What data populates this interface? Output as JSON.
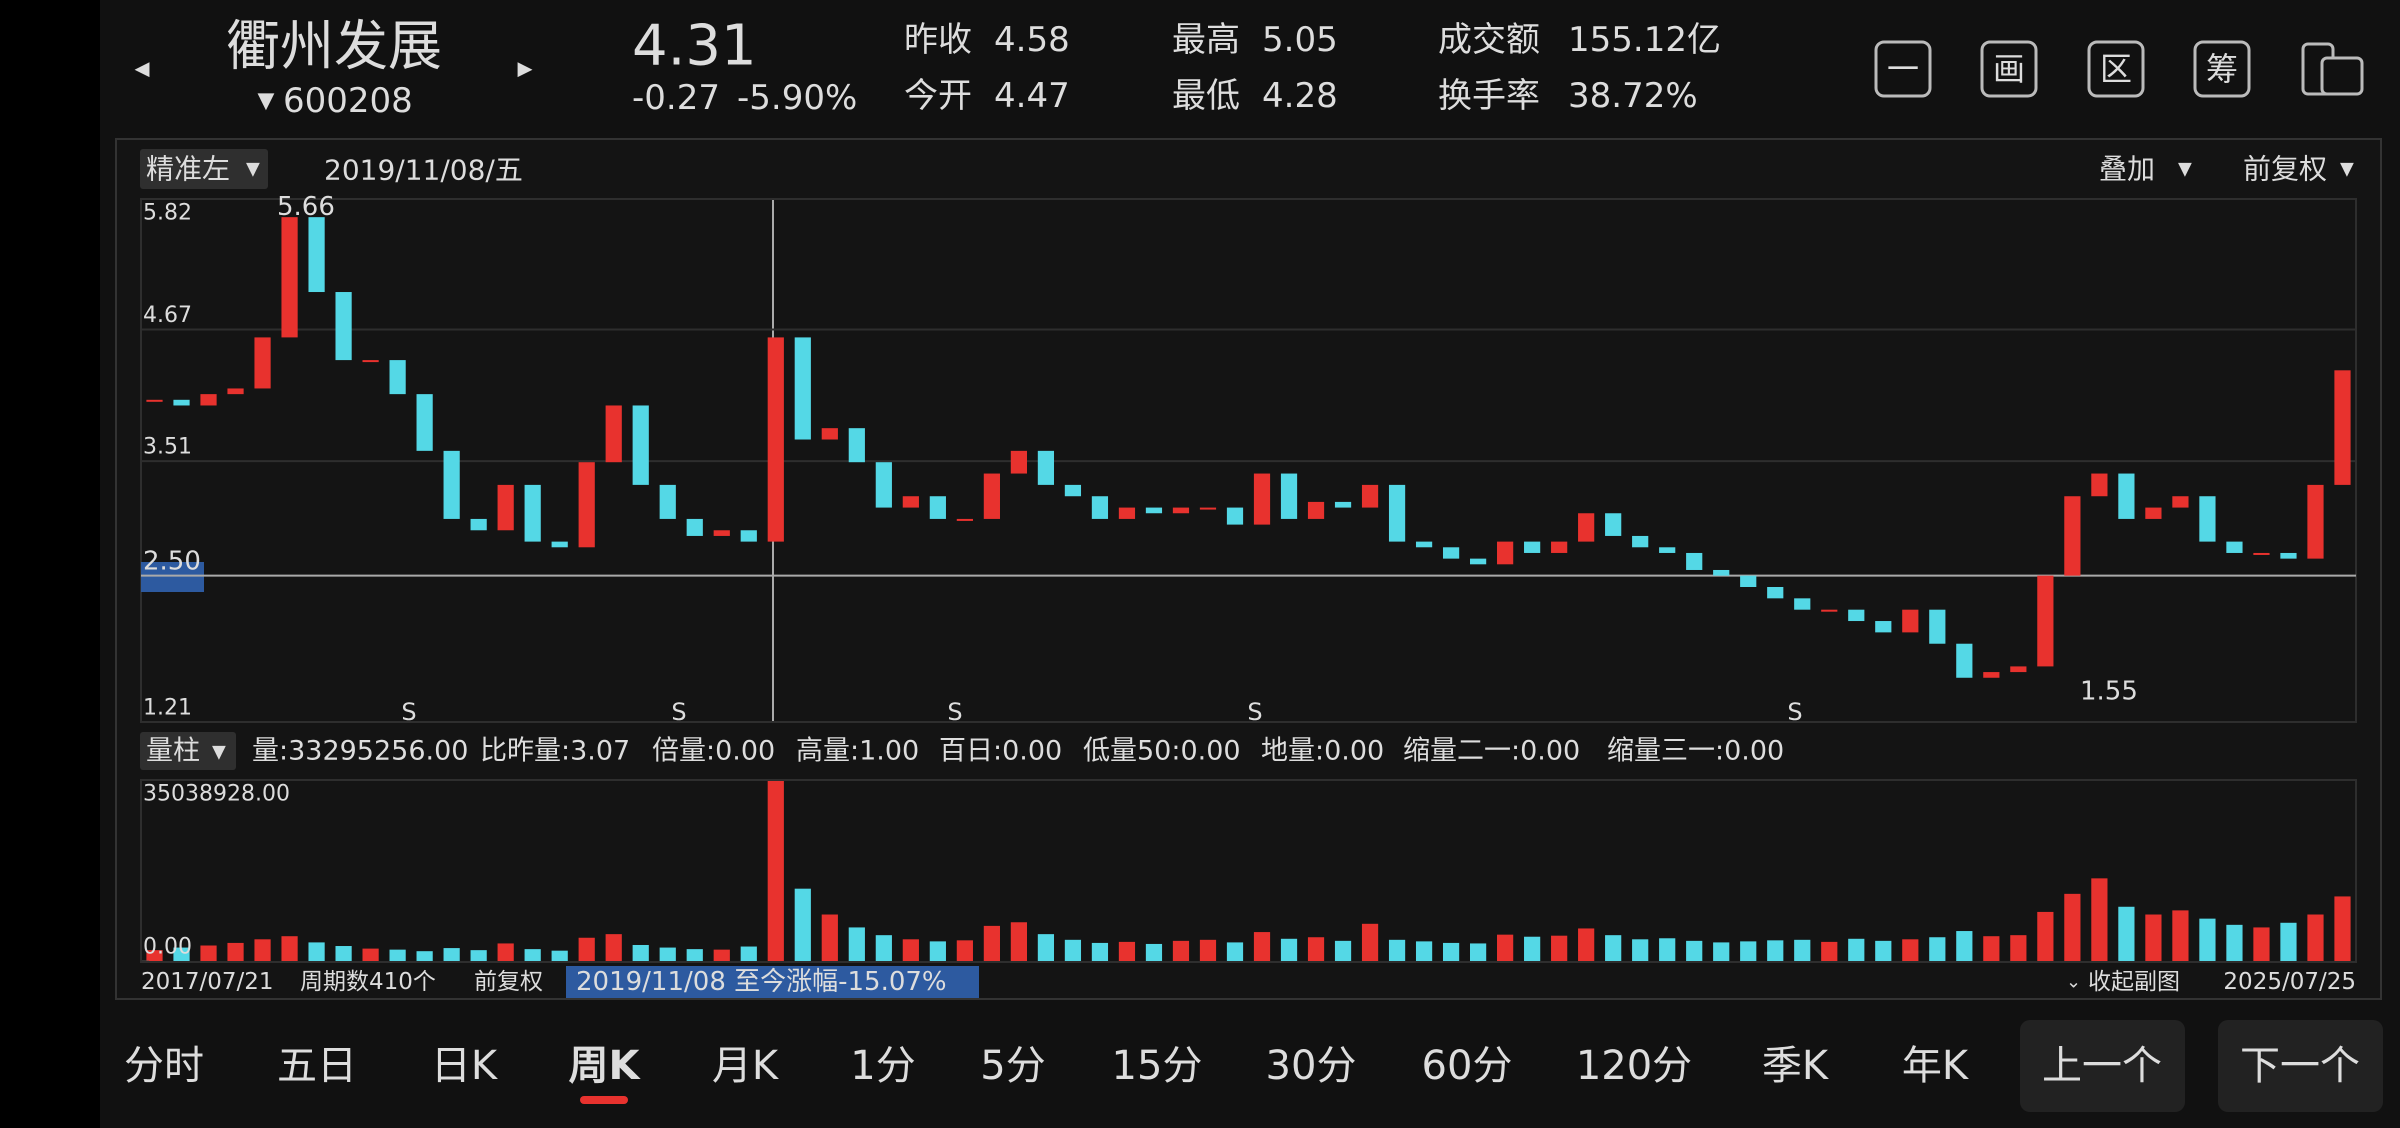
{
  "header": {
    "name": "衢州发展",
    "code": "600208",
    "price": "4.31",
    "change": "-0.27",
    "change_pct": "-5.90%",
    "price_color": "#2fb34a",
    "stats": [
      {
        "label": "昨收",
        "value": "4.58",
        "color": "#eeeeee"
      },
      {
        "label": "今开",
        "value": "4.47",
        "color": "#2fb34a"
      },
      {
        "label": "最高",
        "value": "5.05",
        "color": "#e8322e"
      },
      {
        "label": "最低",
        "value": "4.28",
        "color": "#2fb34a"
      },
      {
        "label": "成交额",
        "value": "155.12亿",
        "color": "#eeeeee"
      },
      {
        "label": "换手率",
        "value": "38.72%",
        "color": "#eeeeee"
      }
    ],
    "icons": [
      "一",
      "画",
      "区",
      "筹"
    ]
  },
  "toolbar": {
    "mode": "精准左",
    "date": "2019/11/08/五",
    "overlay": "叠加",
    "adjust": "前复权"
  },
  "chart_data": {
    "type": "candlestick",
    "up_color": "#e8322e",
    "down_color": "#54d8e6",
    "close": [
      4.05,
      4.0,
      4.1,
      4.15,
      4.6,
      5.66,
      5.0,
      4.4,
      4.4,
      4.1,
      3.6,
      3.0,
      2.9,
      3.3,
      2.8,
      2.75,
      3.5,
      4.0,
      3.3,
      3.0,
      2.85,
      2.9,
      2.8,
      4.6,
      3.7,
      3.8,
      3.5,
      3.1,
      3.2,
      3.0,
      3.0,
      3.4,
      3.6,
      3.3,
      3.2,
      3.0,
      3.1,
      3.05,
      3.1,
      3.1,
      2.95,
      3.4,
      3.0,
      3.15,
      3.1,
      3.3,
      2.8,
      2.75,
      2.65,
      2.6,
      2.8,
      2.7,
      2.8,
      3.05,
      2.85,
      2.75,
      2.7,
      2.55,
      2.5,
      2.4,
      2.3,
      2.2,
      2.2,
      2.1,
      2.0,
      2.2,
      1.9,
      1.6,
      1.65,
      1.7,
      2.5,
      3.2,
      3.4,
      3.0,
      3.1,
      3.2,
      2.8,
      2.7,
      2.7,
      2.65,
      3.3,
      4.31
    ],
    "ylim": [
      1.21,
      5.82
    ],
    "yticks": [
      5.82,
      4.67,
      3.51,
      {
        "value": 2.5,
        "label": "2.50"
      },
      1.21
    ],
    "annotations": [
      {
        "value": 5.66,
        "label": "5.66"
      },
      {
        "value": 1.55,
        "label": "1.55"
      }
    ],
    "signals": [
      "S",
      "S",
      "S",
      "S",
      "S"
    ],
    "volume": [
      2100000,
      2600000,
      3000000,
      3500000,
      4200000,
      4800000,
      3600000,
      2900000,
      2400000,
      2200000,
      1900000,
      2500000,
      2100000,
      3400000,
      2300000,
      2000000,
      4500000,
      5200000,
      3100000,
      2600000,
      2300000,
      2200000,
      2800000,
      35038928,
      14000000,
      9000000,
      6500000,
      5000000,
      4200000,
      3800000,
      4000000,
      6800000,
      7500000,
      5200000,
      4100000,
      3500000,
      3700000,
      3300000,
      3900000,
      4100000,
      3600000,
      5600000,
      4300000,
      4600000,
      3900000,
      7200000,
      4100000,
      3800000,
      3500000,
      3400000,
      5100000,
      4700000,
      4900000,
      6300000,
      5000000,
      4200000,
      4400000,
      3900000,
      3600000,
      3800000,
      4000000,
      4100000,
      3700000,
      4300000,
      3900000,
      4200000,
      4600000,
      5800000,
      4800000,
      5000000,
      9500000,
      13000000,
      16000000,
      10500000,
      9000000,
      9800000,
      8200000,
      7000000,
      6500000,
      7400000,
      9000000,
      12500000
    ],
    "volume_ylim": [
      0,
      35038928
    ],
    "volume_yticks": [
      {
        "value": 35038928,
        "label": "35038928.00"
      },
      {
        "value": 0,
        "label": "0.00"
      }
    ]
  },
  "volume_panel": {
    "selector": "量柱",
    "indicators": [
      {
        "text": "量:33295256.00",
        "color": "#eeeeee"
      },
      {
        "text": "比昨量:3.07",
        "color": "#f5e52a"
      },
      {
        "text": "倍量:0.00",
        "color": "#f5e52a"
      },
      {
        "text": "高量:1.00",
        "color": "#e8322e"
      },
      {
        "text": "百日:0.00",
        "color": "#54d8e6"
      },
      {
        "text": "低量50:0.00",
        "color": "#f5e52a"
      },
      {
        "text": "地量:0.00",
        "color": "#999999"
      },
      {
        "text": "缩量二一:0.00",
        "color": "#2fb34a"
      },
      {
        "text": "缩量三一:0.00",
        "color": "#3f8ef0"
      }
    ]
  },
  "footer": {
    "start": "2017/07/21",
    "periods": "周期数410个",
    "adjust": "前复权",
    "range": "2019/11/08 至今涨幅-15.07%",
    "collapse": "收起副图",
    "end": "2025/07/25"
  },
  "tabs": {
    "items": [
      "分时",
      "五日",
      "日K",
      "周K",
      "月K",
      "1分",
      "5分",
      "15分",
      "30分",
      "60分",
      "120分",
      "季K",
      "年K"
    ],
    "active_index": 3
  },
  "nav": [
    "上一个",
    "下一个"
  ]
}
